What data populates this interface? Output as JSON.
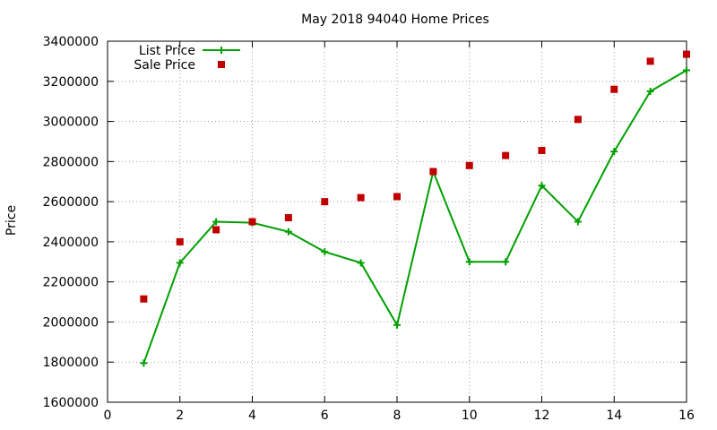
{
  "chart_data": {
    "type": "line",
    "title": "May 2018 94040 Home Prices",
    "xlabel": "",
    "ylabel": "Price",
    "xlim": [
      0,
      16
    ],
    "ylim": [
      1600000,
      3400000
    ],
    "x_ticks": [
      0,
      2,
      4,
      6,
      8,
      10,
      12,
      14,
      16
    ],
    "y_ticks": [
      1600000,
      1800000,
      2000000,
      2200000,
      2400000,
      2600000,
      2800000,
      3000000,
      3200000,
      3400000
    ],
    "grid": true,
    "legend_position": "top-left",
    "series": [
      {
        "name": "List Price",
        "style": "line-with-plus-markers",
        "color": "#00a000",
        "x": [
          1,
          2,
          3,
          4,
          5,
          6,
          7,
          8,
          9,
          10,
          11,
          12,
          13,
          14,
          15,
          16
        ],
        "values": [
          1795000,
          2295000,
          2500000,
          2495000,
          2450000,
          2350000,
          2295000,
          1985000,
          2750000,
          2300000,
          2300000,
          2680000,
          2500000,
          2850000,
          3150000,
          3255000
        ]
      },
      {
        "name": "Sale Price",
        "style": "square-markers",
        "color": "#c00000",
        "x": [
          1,
          2,
          3,
          4,
          5,
          6,
          7,
          8,
          9,
          10,
          11,
          12,
          13,
          14,
          15,
          16
        ],
        "values": [
          2115000,
          2400000,
          2460000,
          2500000,
          2520000,
          2600000,
          2620000,
          2625000,
          2750000,
          2780000,
          2830000,
          2855000,
          3010000,
          3160000,
          3300000,
          3335000
        ]
      }
    ]
  }
}
